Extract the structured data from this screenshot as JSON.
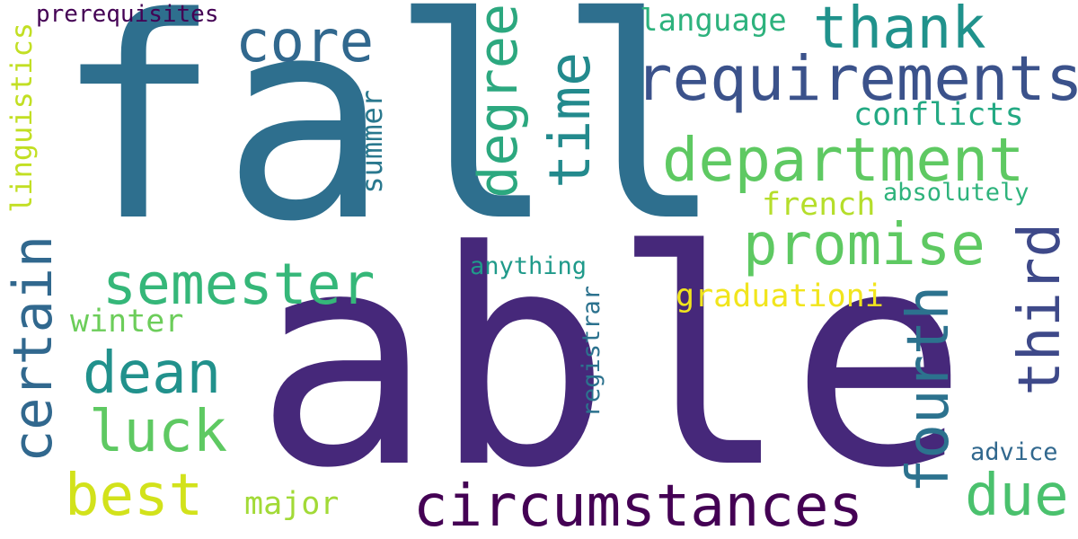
{
  "words": [
    {
      "key": "fall",
      "text": "fall",
      "color": "#2e6f8e"
    },
    {
      "key": "able",
      "text": "able",
      "color": "#46287a"
    },
    {
      "key": "requirements",
      "text": "requirements",
      "color": "#3b528b"
    },
    {
      "key": "thank",
      "text": "thank",
      "color": "#20928c"
    },
    {
      "key": "department",
      "text": "department",
      "color": "#5ec962"
    },
    {
      "key": "core",
      "text": "core",
      "color": "#31688e"
    },
    {
      "key": "degree",
      "text": "degree",
      "color": "#2ca87f"
    },
    {
      "key": "time",
      "text": "time",
      "color": "#238a8d"
    },
    {
      "key": "promise",
      "text": "promise",
      "color": "#5ec962"
    },
    {
      "key": "semester",
      "text": "semester",
      "color": "#35b779"
    },
    {
      "key": "circumstances",
      "text": "circumstances",
      "color": "#440154"
    },
    {
      "key": "certain",
      "text": "certain",
      "color": "#31688e"
    },
    {
      "key": "dean",
      "text": "dean",
      "color": "#21918c"
    },
    {
      "key": "luck",
      "text": "luck",
      "color": "#5ec962"
    },
    {
      "key": "best",
      "text": "best",
      "color": "#d2e21b"
    },
    {
      "key": "fourth",
      "text": "fourth",
      "color": "#2c728e"
    },
    {
      "key": "third",
      "text": "third",
      "color": "#3e4989"
    },
    {
      "key": "due",
      "text": "due",
      "color": "#4ac16d"
    },
    {
      "key": "language",
      "text": "language",
      "color": "#2db27d"
    },
    {
      "key": "conflicts",
      "text": "conflicts",
      "color": "#23a983"
    },
    {
      "key": "linguistics",
      "text": "linguistics",
      "color": "#c2df23"
    },
    {
      "key": "prerequisites",
      "text": "prerequisites",
      "color": "#440154"
    },
    {
      "key": "summer",
      "text": "summer",
      "color": "#2a788e"
    },
    {
      "key": "french",
      "text": "french",
      "color": "#b5de2b"
    },
    {
      "key": "absolutely",
      "text": "absolutely",
      "color": "#2eb37c"
    },
    {
      "key": "anything",
      "text": "anything",
      "color": "#1f9a8a"
    },
    {
      "key": "graduationi",
      "text": "graduationi",
      "color": "#f1e51d"
    },
    {
      "key": "winter",
      "text": "winter",
      "color": "#6ccd5a"
    },
    {
      "key": "registrar",
      "text": "registrar",
      "color": "#2c728e"
    },
    {
      "key": "major",
      "text": "major",
      "color": "#a2da37"
    },
    {
      "key": "advice",
      "text": "advice",
      "color": "#31688e"
    }
  ]
}
